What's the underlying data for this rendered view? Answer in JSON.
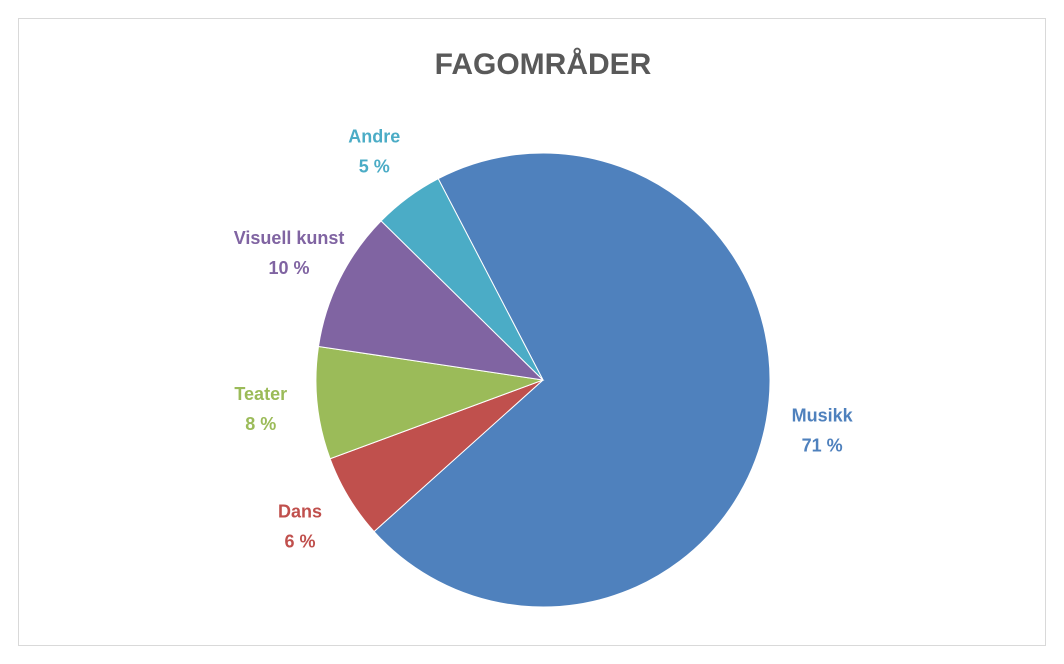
{
  "chart_data": {
    "type": "pie",
    "title": "FAGOMRÅDER",
    "categories": [
      "Musikk",
      "Dans",
      "Teater",
      "Visuell kunst",
      "Andre"
    ],
    "values": [
      71,
      6,
      8,
      10,
      5
    ],
    "value_labels": [
      "71 %",
      "6 %",
      "8 %",
      "10 %",
      "5 %"
    ],
    "colors": [
      "#4f81bd",
      "#c0504d",
      "#9bbb59",
      "#8064a2",
      "#4bacc6"
    ]
  }
}
